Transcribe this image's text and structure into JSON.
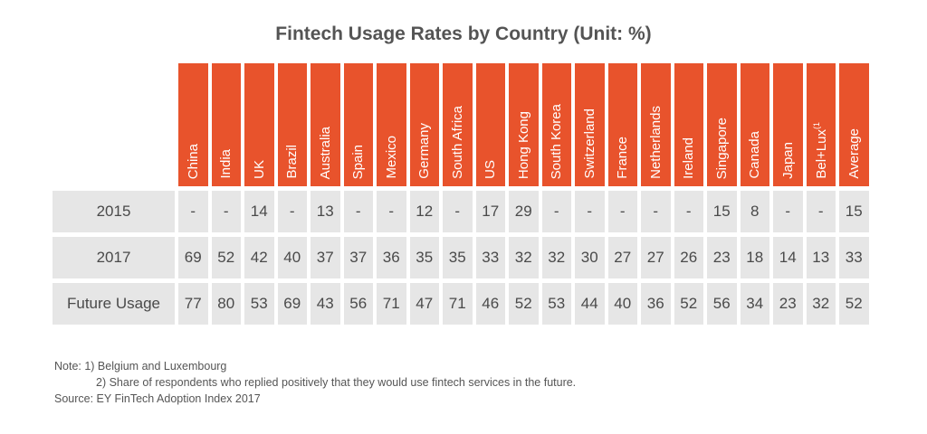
{
  "chart_data": {
    "type": "table",
    "title": "Fintech Usage Rates by Country (Unit: %)",
    "columns": [
      "China",
      "India",
      "UK",
      "Brazil",
      "Australia",
      "Spain",
      "Mexico",
      "Germany",
      "South Africa",
      "US",
      "Hong Kong",
      "South Korea",
      "Switzerland",
      "France",
      "Netherlands",
      "Ireland",
      "Singapore",
      "Canada",
      "Japan",
      "Bel+Lux",
      "Average"
    ],
    "column_superscripts": {
      "Bel+Lux": "(1"
    },
    "rows": [
      {
        "label": "2015",
        "values": [
          "-",
          "-",
          "14",
          "-",
          "13",
          "-",
          "-",
          "12",
          "-",
          "17",
          "29",
          "-",
          "-",
          "-",
          "-",
          "-",
          "15",
          "8",
          "-",
          "-",
          "15"
        ]
      },
      {
        "label": "2017",
        "values": [
          "69",
          "52",
          "42",
          "40",
          "37",
          "37",
          "36",
          "35",
          "35",
          "33",
          "32",
          "32",
          "30",
          "27",
          "27",
          "26",
          "23",
          "18",
          "14",
          "13",
          "33"
        ]
      },
      {
        "label": "Future Usage",
        "values": [
          "77",
          "80",
          "53",
          "69",
          "43",
          "56",
          "71",
          "47",
          "71",
          "46",
          "52",
          "53",
          "44",
          "40",
          "36",
          "52",
          "56",
          "34",
          "23",
          "32",
          "52"
        ]
      }
    ],
    "colors": {
      "header": "#e8532c",
      "cell": "#e6e6e6"
    }
  },
  "notes": {
    "line1": "Note: 1) Belgium and Luxembourg",
    "line2": "2) Share of respondents who replied positively that they would use fintech services in the future.",
    "line3": "Source: EY FinTech Adoption Index 2017"
  }
}
